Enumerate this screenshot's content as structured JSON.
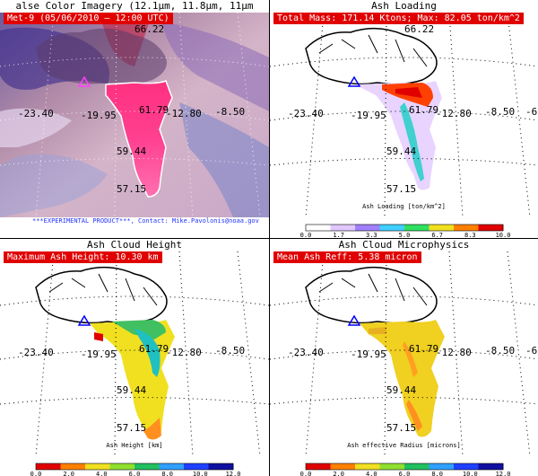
{
  "panels": {
    "false_color": {
      "title": "alse Color Imagery (12.1µm, 11.8µm, 11µm",
      "timestamp": "Met-9 (05/06/2010 – 12:00 UTC)",
      "footer": "***EXPERIMENTAL PRODUCT***, Contact: Mike.Pavolonis@noaa.gov"
    },
    "ash_loading": {
      "title": "Ash Loading",
      "info": "Total Mass: 171.14 Ktons; Max: 82.05 ton/km^2",
      "colorbar": {
        "label": "Ash Loading [ton/km^2]",
        "ticks": [
          "0.0",
          "1.7",
          "3.3",
          "5.0",
          "6.7",
          "8.3",
          "10.0"
        ],
        "colors": [
          "#ffffff",
          "#e0c8ff",
          "#a080ff",
          "#40d0ff",
          "#30e060",
          "#f0e020",
          "#ff8000",
          "#e00000"
        ]
      }
    },
    "ash_height": {
      "title": "Ash Cloud Height",
      "info": "Maximum Ash Height: 10.30 km",
      "colorbar": {
        "label": "Ash Height [km]",
        "ticks": [
          "0.0",
          "2.0",
          "4.0",
          "6.0",
          "8.0",
          "10.0",
          "12.0"
        ],
        "colors": [
          "#e00000",
          "#ff8000",
          "#f0e020",
          "#90e030",
          "#20c060",
          "#30a0ff",
          "#2040ff",
          "#1010a0"
        ]
      }
    },
    "ash_microphysics": {
      "title": "Ash Cloud Microphysics",
      "info": "Mean Ash Reff: 5.38 micron",
      "colorbar": {
        "label": "Ash effective Radius [microns]",
        "ticks": [
          "0.0",
          "2.0",
          "4.0",
          "6.0",
          "8.0",
          "10.0",
          "12.0"
        ],
        "colors": [
          "#e00000",
          "#ff8000",
          "#f0e020",
          "#90e030",
          "#20c060",
          "#30a0ff",
          "#2040ff",
          "#1010a0"
        ]
      }
    }
  },
  "grid_labels": {
    "lat_top": "66.22",
    "lat_mid": "61.79",
    "lat_low": "59.44",
    "lat_bottom": "57.15",
    "lon_left": "-23.40",
    "lon_center": "-19.95",
    "lon_right": "-12.80",
    "lon_far": "-8.50",
    "lon_edge": "-6"
  }
}
